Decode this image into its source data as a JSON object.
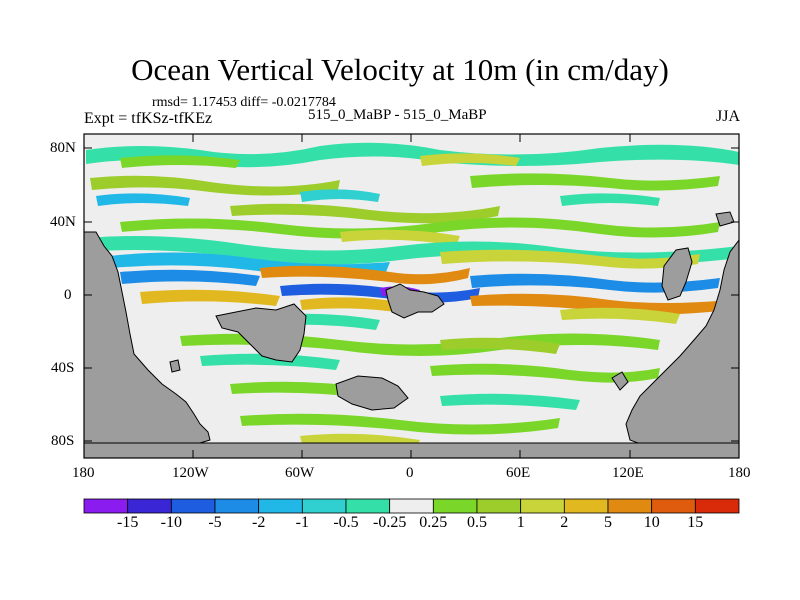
{
  "title": "Ocean Vertical Velocity at 10m (in cm/day)",
  "stats_text": "rmsd= 1.17453 diff= -0.0217784",
  "left_label": "Expt = tfKSz-tfKEz",
  "center_label": "515_0_MaBP - 515_0_MaBP",
  "right_label": "JJA",
  "lat_ticks": [
    "80N",
    "40N",
    "0",
    "40S",
    "80S"
  ],
  "lon_ticks": [
    "180",
    "120W",
    "60W",
    "0",
    "60E",
    "120E",
    "180"
  ],
  "colorbar": {
    "levels": [
      "-15",
      "-10",
      "-5",
      "-2",
      "-1",
      "-0.5",
      "-0.25",
      "0.25",
      "0.5",
      "1",
      "2",
      "5",
      "10",
      "15"
    ],
    "colors": [
      "#8a1cf0",
      "#3b26d6",
      "#1f5de0",
      "#1c8ce6",
      "#21b8e8",
      "#2fd0cf",
      "#34e0a8",
      "#eeeeee",
      "#7bd62a",
      "#9ccd2a",
      "#c9d43a",
      "#e1b81f",
      "#e08a12",
      "#df5c0e",
      "#d92a0a"
    ]
  },
  "colors": {
    "land": "#9d9d9d",
    "neutral": "#eeeeee"
  }
}
